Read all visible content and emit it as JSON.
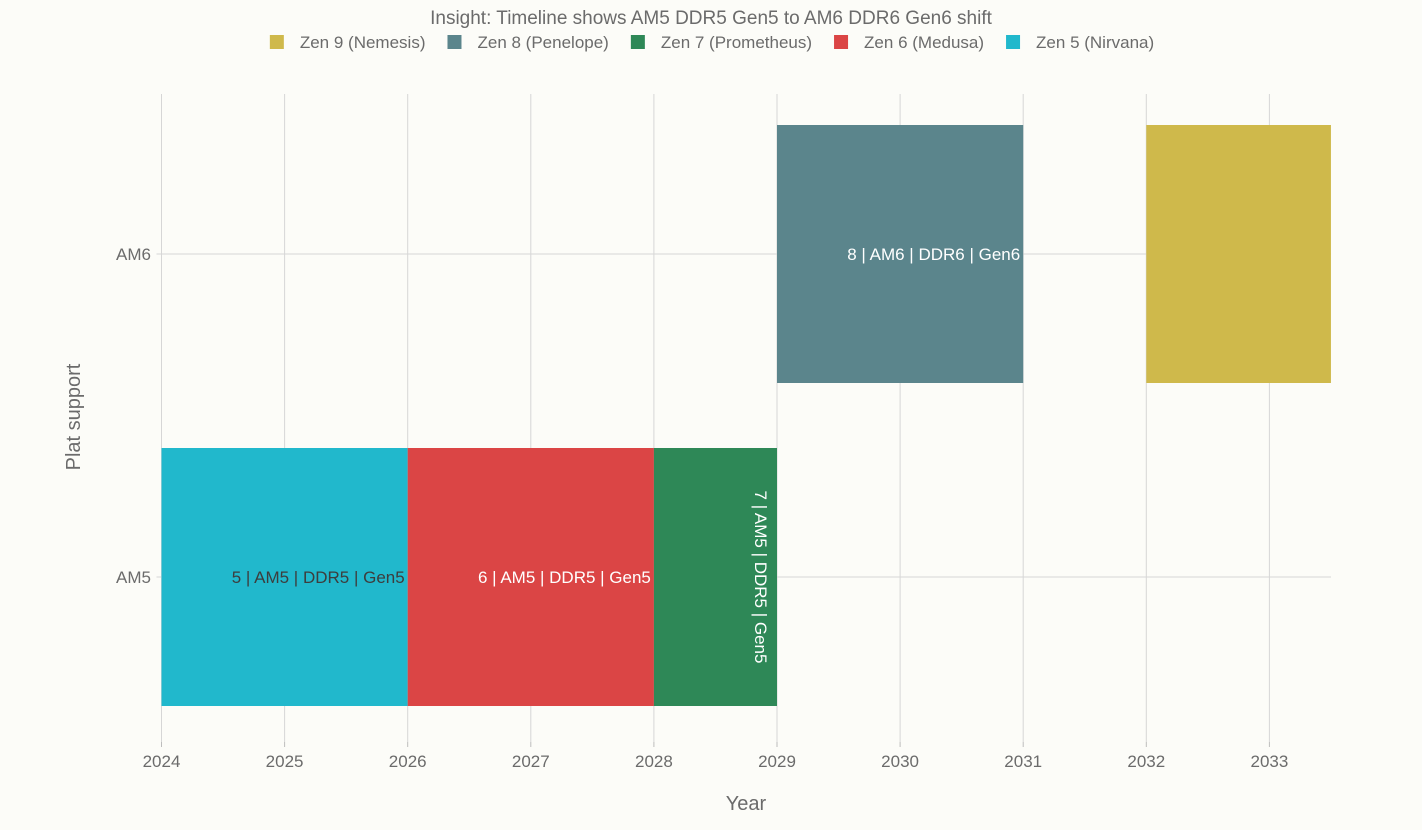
{
  "chart_data": {
    "type": "bar",
    "orientation": "horizontal-timeline",
    "title": "Insight: Timeline shows AM5 DDR5 Gen5 to AM6 DDR6 Gen6 shift",
    "xlabel": "Year",
    "ylabel": "Plat support",
    "xlim": [
      2024,
      2033.5
    ],
    "x_ticks": [
      2024,
      2025,
      2026,
      2027,
      2028,
      2029,
      2030,
      2031,
      2032,
      2033
    ],
    "categories": [
      "AM5",
      "AM6"
    ],
    "grid": true,
    "legend_position": "top-center",
    "legend": [
      {
        "name": "Zen 9 (Nemesis)",
        "color": "#CFB94B"
      },
      {
        "name": "Zen 8 (Penelope)",
        "color": "#5B858C"
      },
      {
        "name": "Zen 7 (Prometheus)",
        "color": "#2E8857"
      },
      {
        "name": "Zen 6 (Medusa)",
        "color": "#DB4545"
      },
      {
        "name": "Zen 5 (Nirvana)",
        "color": "#21B8CC"
      }
    ],
    "series": [
      {
        "name": "Zen 5 (Nirvana)",
        "category": "AM5",
        "start": 2024,
        "end": 2026,
        "label": "5 | AM5 | DDR5 | Gen5",
        "color": "#21B8CC",
        "label_color": "#3d3d3d",
        "label_rotated": false
      },
      {
        "name": "Zen 6 (Medusa)",
        "category": "AM5",
        "start": 2026,
        "end": 2028,
        "label": "6 | AM5 | DDR5 | Gen5",
        "color": "#DB4545",
        "label_color": "#ffffff",
        "label_rotated": false
      },
      {
        "name": "Zen 7 (Prometheus)",
        "category": "AM5",
        "start": 2028,
        "end": 2029,
        "label": "7 | AM5 | DDR5 | Gen5",
        "color": "#2E8857",
        "label_color": "#ffffff",
        "label_rotated": true
      },
      {
        "name": "Zen 8 (Penelope)",
        "category": "AM6",
        "start": 2029,
        "end": 2031,
        "label": "8 | AM6 | DDR6 | Gen6",
        "color": "#5B858C",
        "label_color": "#ffffff",
        "label_rotated": false
      },
      {
        "name": "Zen 9 (Nemesis)",
        "category": "AM6",
        "start": 2032,
        "end": 2033.5,
        "label": "",
        "color": "#CFB94B",
        "label_color": "#ffffff",
        "label_rotated": false
      }
    ]
  }
}
